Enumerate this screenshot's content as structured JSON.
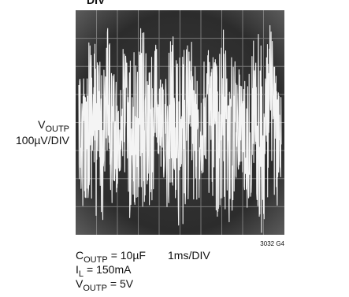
{
  "top_label": "DIV",
  "y_label": {
    "symbol": "V",
    "subscript": "OUTP",
    "scale": "100µV/DIV"
  },
  "x_scale": "1ms/DIV",
  "conditions": [
    {
      "symbol": "C",
      "subscript": "OUTP",
      "value": "= 10µF"
    },
    {
      "symbol": "I",
      "subscript": "L",
      "value": "= 150mA"
    },
    {
      "symbol": "V",
      "subscript": "OUTP",
      "value": "= 5V"
    }
  ],
  "figure_id": "3032 G4"
}
